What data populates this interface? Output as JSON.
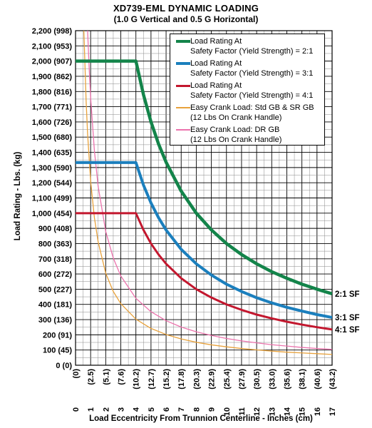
{
  "chart_data": {
    "type": "line",
    "title": "XD739-EML DYNAMIC LOADING",
    "subtitle": "(1.0 G Vertical and 0.5 G Horizontal)",
    "xlabel": "Load Eccentricity From Trunnion Centerline - Inches (cm)",
    "ylabel": "Load Rating - Lbs. (kg)",
    "xlim": [
      0,
      17
    ],
    "ylim": [
      0,
      2200
    ],
    "grid": true,
    "legend_position": "top-right",
    "x_ticks": [
      {
        "in": "0",
        "cm": "(0)"
      },
      {
        "in": "1",
        "cm": "(2.5)"
      },
      {
        "in": "2",
        "cm": "(5.1)"
      },
      {
        "in": "3",
        "cm": "(7.6)"
      },
      {
        "in": "4",
        "cm": "(10.2)"
      },
      {
        "in": "5",
        "cm": "(12.7)"
      },
      {
        "in": "6",
        "cm": "(15.2)"
      },
      {
        "in": "7",
        "cm": "(17.8)"
      },
      {
        "in": "8",
        "cm": "(20.3)"
      },
      {
        "in": "9",
        "cm": "(22.9)"
      },
      {
        "in": "10",
        "cm": "(25.4)"
      },
      {
        "in": "11",
        "cm": "(27.9)"
      },
      {
        "in": "12",
        "cm": "(30.5)"
      },
      {
        "in": "13",
        "cm": "(33.0)"
      },
      {
        "in": "14",
        "cm": "(35.6)"
      },
      {
        "in": "15",
        "cm": "(38.1)"
      },
      {
        "in": "16",
        "cm": "(40.6)"
      },
      {
        "in": "17",
        "cm": "(43.2)"
      }
    ],
    "y_ticks": [
      "0 (0)",
      "100 (45)",
      "200 (91)",
      "300 (136)",
      "400 (181)",
      "500 (227)",
      "600 (272)",
      "700 (318)",
      "800 (363)",
      "900 (408)",
      "1,000 (454)",
      "1,100 (499)",
      "1,200 (544)",
      "1,300 (590)",
      "1,400 (635)",
      "1,500 (680)",
      "1,600 (726)",
      "1,700 (771)",
      "1,800 (816)",
      "1,900 (862)",
      "2,000 (907)",
      "2,100 (953)",
      "2,200 (998)"
    ],
    "series": [
      {
        "name": "Load Rating At\nSafety Factor (Yield Strength) = 2:1",
        "color": "#13844a",
        "width": 4.5,
        "end_label": "2:1 SF",
        "x": [
          0,
          4,
          4.5,
          5,
          5.5,
          6,
          7,
          8,
          9,
          10,
          11,
          12,
          13,
          14,
          15,
          16,
          17
        ],
        "y": [
          2000,
          2000,
          1780,
          1600,
          1455,
          1335,
          1145,
          1000,
          890,
          800,
          728,
          667,
          615,
          572,
          533,
          500,
          470
        ]
      },
      {
        "name": "Load Rating At\nSafety Factor (Yield Strength) = 3:1",
        "color": "#1b7fbd",
        "width": 4,
        "end_label": "3:1 SF",
        "x": [
          0,
          4,
          4.5,
          5,
          5.5,
          6,
          7,
          8,
          9,
          10,
          11,
          12,
          13,
          14,
          15,
          16,
          17
        ],
        "y": [
          1333,
          1333,
          1185,
          1067,
          970,
          889,
          762,
          667,
          593,
          533,
          485,
          444,
          410,
          381,
          356,
          333,
          314
        ]
      },
      {
        "name": "Load Rating At\nSafety Factor (Yield Strength) = 4:1",
        "color": "#c3172e",
        "width": 3,
        "end_label": "4:1 SF",
        "x": [
          0,
          4,
          4.5,
          5,
          5.5,
          6,
          7,
          8,
          9,
          10,
          11,
          12,
          13,
          14,
          15,
          16,
          17
        ],
        "y": [
          1000,
          1000,
          890,
          800,
          728,
          667,
          572,
          500,
          445,
          400,
          364,
          333,
          308,
          286,
          267,
          250,
          235
        ]
      },
      {
        "name": "Easy Crank Load: Std GB & SR GB\n(12 Lbs On Crank Handle)",
        "color": "#e8a23c",
        "width": 1.3,
        "end_label": "",
        "x": [
          0.55,
          0.6,
          0.7,
          0.8,
          1,
          1.25,
          1.5,
          2,
          2.5,
          3,
          4,
          5,
          6,
          7,
          8,
          9,
          10,
          11,
          12,
          13,
          14,
          15,
          16,
          17
        ],
        "y": [
          2200,
          2050,
          1740,
          1520,
          1210,
          970,
          810,
          605,
          485,
          405,
          303,
          242,
          202,
          173,
          151,
          134,
          121,
          110,
          101,
          93,
          86,
          81,
          76,
          71
        ]
      },
      {
        "name": "Easy Crank Load: DR GB\n(12 Lbs On Crank Handle)",
        "color": "#ec73ad",
        "width": 1.3,
        "end_label": "",
        "x": [
          0.8,
          0.9,
          1,
          1.25,
          1.5,
          2,
          2.5,
          3,
          4,
          5,
          6,
          7,
          8,
          9,
          10,
          11,
          12,
          13,
          14,
          15,
          16,
          17
        ],
        "y": [
          2200,
          1960,
          1760,
          1410,
          1175,
          880,
          705,
          587,
          440,
          352,
          293,
          251,
          220,
          196,
          176,
          160,
          147,
          135,
          126,
          117,
          110,
          104
        ]
      }
    ]
  }
}
